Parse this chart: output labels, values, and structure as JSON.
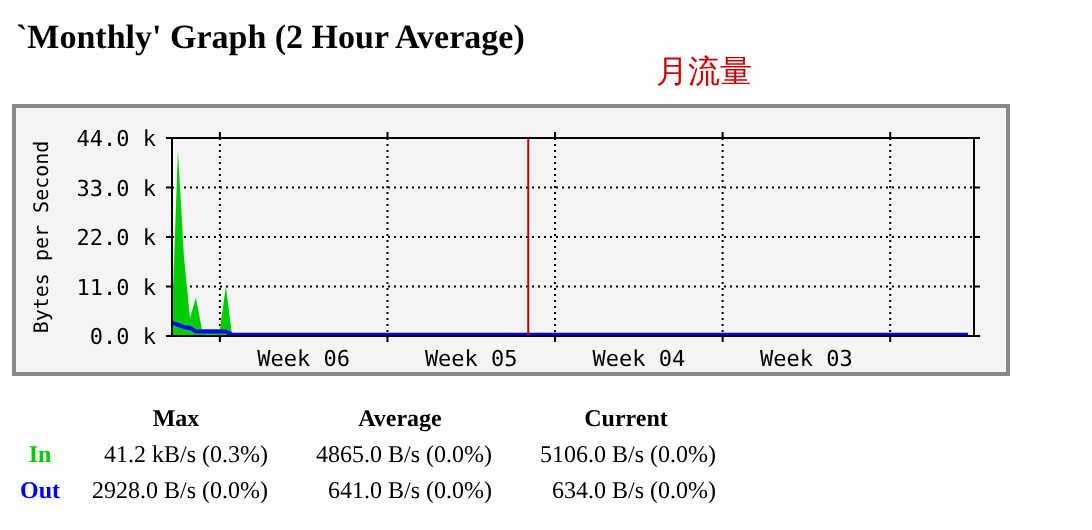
{
  "chart_data": {
    "type": "area",
    "title": "`Monthly' Graph (2 Hour Average)",
    "subtitle": "月流量",
    "ylabel": "Bytes per Second",
    "categories": [
      null,
      null,
      null,
      null,
      null,
      null,
      null,
      null,
      null,
      null,
      null,
      null,
      null,
      null,
      null,
      null,
      null,
      null,
      null,
      null,
      null,
      null,
      "Week 06",
      null,
      null,
      null,
      null,
      null,
      null,
      null,
      null,
      null,
      null,
      null,
      null,
      null,
      null,
      null,
      null,
      null,
      null,
      null,
      null,
      null,
      null,
      null,
      null,
      null,
      null,
      null,
      "Week 05",
      null,
      null,
      null,
      null,
      null,
      null,
      null,
      null,
      null,
      null,
      null,
      null,
      null,
      null,
      null,
      null,
      null,
      null,
      null,
      null,
      null,
      null,
      null,
      null,
      null,
      null,
      null,
      "Week 04",
      null,
      null,
      null,
      null,
      null,
      null,
      null,
      null,
      null,
      null,
      null,
      null,
      null,
      null,
      null,
      null,
      null,
      null,
      null,
      null,
      null,
      null,
      null,
      null,
      null,
      null,
      null,
      "Week 03",
      null,
      null,
      null,
      null,
      null,
      null,
      null,
      null,
      null,
      null,
      null,
      null,
      null,
      null,
      null,
      null,
      null,
      null,
      null,
      null,
      null,
      null,
      null,
      null,
      null,
      null,
      null
    ],
    "ylim": [
      0,
      44000
    ],
    "yticks": [
      {
        "value": 0,
        "label": "0.0 k"
      },
      {
        "value": 11000,
        "label": "11.0 k"
      },
      {
        "value": 22000,
        "label": "22.0 k"
      },
      {
        "value": 33000,
        "label": "33.0 k"
      },
      {
        "value": 44000,
        "label": "44.0 k"
      }
    ],
    "grid": true,
    "legend": "bottom",
    "series": [
      {
        "name": "In",
        "type": "area",
        "color": "#00cc00",
        "values": [
          4000,
          41200,
          17500,
          4000,
          8500,
          1500,
          1500,
          1500,
          1500,
          11000,
          500,
          500,
          500,
          500,
          500,
          500,
          500,
          500,
          500,
          500,
          500,
          500,
          500,
          500,
          500,
          500,
          500,
          500,
          500,
          500,
          500,
          500,
          500,
          500,
          500,
          500,
          500,
          500,
          500,
          500,
          500,
          500,
          500,
          500,
          500,
          500,
          500,
          500,
          500,
          500,
          500,
          500,
          500,
          500,
          500,
          500,
          500,
          500,
          500,
          500,
          500,
          500,
          500,
          500,
          500,
          500,
          500,
          500,
          500,
          500,
          500,
          500,
          500,
          500,
          500,
          500,
          500,
          500,
          500,
          500,
          500,
          500,
          500,
          500,
          500,
          500,
          500,
          500,
          500,
          500,
          500,
          500,
          500,
          500,
          500,
          500,
          500,
          500,
          500,
          500,
          500,
          500,
          500,
          500,
          500,
          500,
          500,
          500,
          500,
          500,
          500,
          500,
          500,
          500,
          500,
          500,
          500,
          500,
          500,
          500,
          500,
          500,
          500,
          500,
          500,
          500,
          500,
          500,
          500,
          500,
          500,
          500,
          500,
          500
        ]
      },
      {
        "name": "Out",
        "type": "line",
        "color": "#0000ff",
        "values": [
          2900,
          2500,
          2000,
          1800,
          1000,
          1000,
          1000,
          1000,
          1000,
          1000,
          300,
          300,
          300,
          300,
          300,
          300,
          300,
          300,
          300,
          300,
          300,
          300,
          300,
          300,
          300,
          300,
          300,
          300,
          300,
          300,
          300,
          300,
          300,
          300,
          300,
          300,
          300,
          300,
          300,
          300,
          300,
          300,
          300,
          300,
          300,
          300,
          300,
          300,
          300,
          300,
          300,
          300,
          300,
          300,
          300,
          300,
          300,
          300,
          300,
          300,
          300,
          300,
          300,
          300,
          300,
          300,
          300,
          300,
          300,
          300,
          300,
          300,
          300,
          300,
          300,
          300,
          300,
          300,
          300,
          300,
          300,
          300,
          300,
          300,
          300,
          300,
          300,
          300,
          300,
          300,
          300,
          300,
          300,
          300,
          300,
          300,
          300,
          300,
          300,
          300,
          300,
          300,
          300,
          300,
          300,
          300,
          300,
          300,
          300,
          300,
          300,
          300,
          300,
          300,
          300,
          300,
          300,
          300,
          300,
          300,
          300,
          300,
          300,
          300,
          300,
          300,
          300,
          300,
          300,
          300,
          300,
          300,
          300,
          300
        ]
      }
    ],
    "annotations": [
      "Max",
      "Average",
      "Current",
      "41.2 kB/s (0.3%)",
      "4865.0 B/s (0.0%)",
      "5106.0 B/s (0.0%)",
      "2928.0 B/s (0.0%)",
      "641.0 B/s (0.0%)",
      "634.0 B/s (0.0%)"
    ]
  }
}
